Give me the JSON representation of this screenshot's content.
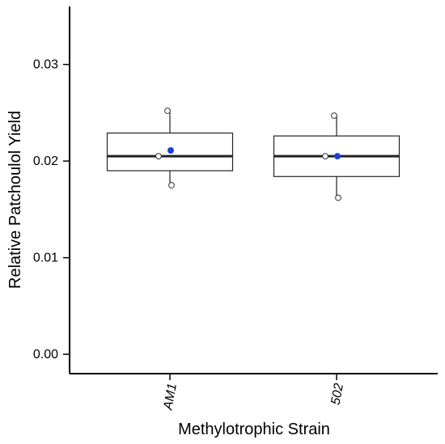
{
  "chart_data": {
    "type": "box",
    "title": "",
    "xlabel": "Methylotrophic Strain",
    "ylabel": "Relative Patchoulol Yield",
    "categories": [
      "AM1",
      "502"
    ],
    "ylim": [
      -0.002,
      0.036
    ],
    "yticks": [
      0.0,
      0.01,
      0.02,
      0.03
    ],
    "ytick_labels": [
      "0.00",
      "0.01",
      "0.02",
      "0.03"
    ],
    "grid": false,
    "legend": "none",
    "boxes": [
      {
        "category": "AM1",
        "q1": 0.019,
        "median": 0.0205,
        "q3": 0.0229,
        "whisker_low": 0.0175,
        "whisker_high": 0.0252,
        "mean": 0.0211,
        "points": [
          0.0252,
          0.0205,
          0.0175
        ]
      },
      {
        "category": "502",
        "q1": 0.0184,
        "median": 0.0205,
        "q3": 0.0226,
        "whisker_low": 0.0162,
        "whisker_high": 0.0247,
        "mean": 0.0205,
        "points": [
          0.0247,
          0.0205,
          0.0162
        ]
      }
    ],
    "colors": {
      "mean_marker": "#1f3fd6",
      "box_line": "#222222",
      "median_line": "#222222",
      "points": "#333333"
    }
  }
}
